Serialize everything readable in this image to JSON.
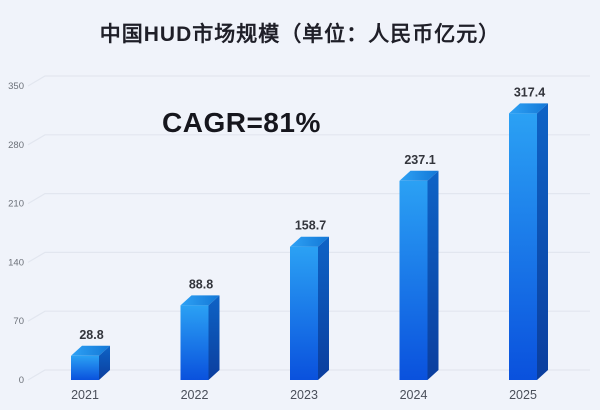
{
  "header": {
    "title": "中国HUD市场规模（单位：人民币亿元）"
  },
  "chart_data": {
    "type": "bar",
    "style": "3d-cuboid",
    "title": "中国HUD市场规模（单位：人民币亿元）",
    "unit": "人民币亿元",
    "annotation": "CAGR=81%",
    "categories": [
      "2021",
      "2022",
      "2023",
      "2024",
      "2025"
    ],
    "values": [
      28.8,
      88.8,
      158.7,
      237.1,
      317.4
    ],
    "xlabel": "",
    "ylabel": "",
    "ylim": [
      0,
      350
    ],
    "yticks": [
      0,
      70,
      140,
      210,
      280,
      350
    ],
    "grid": true,
    "legend": "none",
    "colors": {
      "background": "#f0f3fa",
      "gridline": "#e2e6ef",
      "bar_front_top": "#2ba1f4",
      "bar_front_bottom": "#0a51dd",
      "bar_side_top": "#0e63c6",
      "bar_side_bottom": "#0b3e9e",
      "bar_top_left": "#2ea2f5",
      "bar_top_right": "#1377d6",
      "title_text": "#1f1f28",
      "annotation_text": "#16161d",
      "value_text": "#33353c",
      "tick_text": "#6b7078",
      "axis_text": "#4a4f5a"
    }
  }
}
